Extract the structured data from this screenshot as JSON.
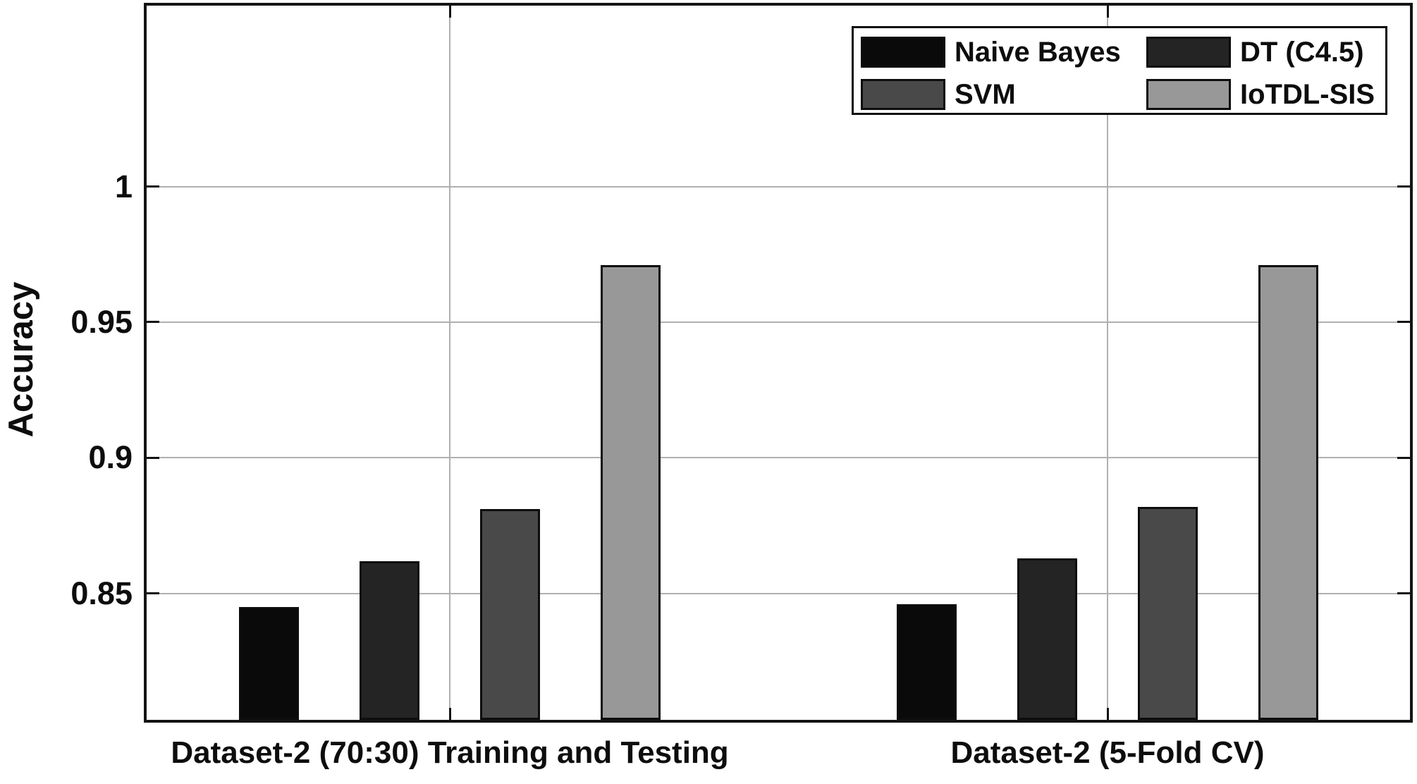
{
  "chart_data": {
    "type": "bar",
    "title": "",
    "xlabel": "",
    "ylabel": "Accuracy",
    "categories": [
      "Dataset-2 (70:30) Training and Testing",
      "Dataset-2 (5-Fold CV)"
    ],
    "series": [
      {
        "name": "Naive Bayes",
        "color": "#0a0a0a",
        "values": [
          0.845,
          0.846
        ]
      },
      {
        "name": "DT (C4.5)",
        "color": "#242424",
        "values": [
          0.862,
          0.863
        ]
      },
      {
        "name": "SVM",
        "color": "#494949",
        "values": [
          0.881,
          0.882
        ]
      },
      {
        "name": "IoTDL-SIS",
        "color": "#989898",
        "values": [
          0.971,
          0.971
        ]
      }
    ],
    "yticks": [
      0.85,
      0.9,
      0.95,
      1
    ],
    "ytick_labels": [
      "0.85",
      "0.9",
      "0.95",
      "1"
    ],
    "ylim": [
      0.8034,
      1.0667
    ],
    "grid": true,
    "grid_color": "#b0b0b0",
    "axis_color": "#141414",
    "background": "#ffffff",
    "legend_position": "top-right",
    "legend_layout": "2-columns-2-rows"
  }
}
